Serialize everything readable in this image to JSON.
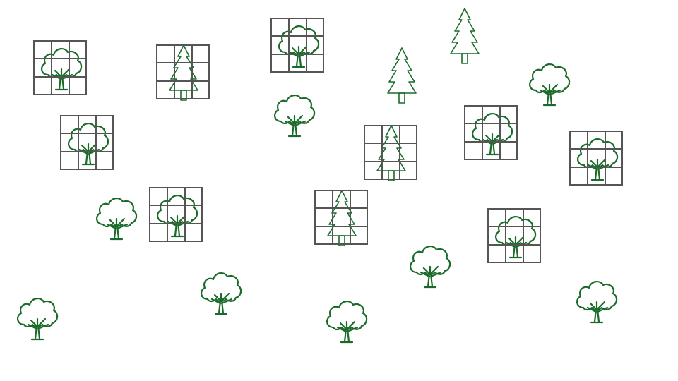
{
  "palette": {
    "background": "#ffffff",
    "tree_stroke": "#1a6b2a",
    "grid_stroke": "#555555"
  },
  "sprites": [
    {
      "id": "s1",
      "kind": "deciduous-tree",
      "grid": true
    },
    {
      "id": "s2",
      "kind": "pine-tree",
      "grid": true
    },
    {
      "id": "s3",
      "kind": "deciduous-tree",
      "grid": true
    },
    {
      "id": "s4",
      "kind": "pine-tree",
      "grid": false
    },
    {
      "id": "s5",
      "kind": "pine-tree",
      "grid": false
    },
    {
      "id": "s6",
      "kind": "deciduous-tree",
      "grid": false
    },
    {
      "id": "s7",
      "kind": "deciduous-tree",
      "grid": true
    },
    {
      "id": "s8",
      "kind": "deciduous-tree",
      "grid": false
    },
    {
      "id": "s9",
      "kind": "pine-tree",
      "grid": true
    },
    {
      "id": "s10",
      "kind": "deciduous-tree",
      "grid": true
    },
    {
      "id": "s11",
      "kind": "deciduous-tree",
      "grid": true
    },
    {
      "id": "s12",
      "kind": "deciduous-tree",
      "grid": false
    },
    {
      "id": "s13",
      "kind": "deciduous-tree",
      "grid": true
    },
    {
      "id": "s14",
      "kind": "pine-tree",
      "grid": true
    },
    {
      "id": "s15",
      "kind": "deciduous-tree",
      "grid": true
    },
    {
      "id": "s16",
      "kind": "deciduous-tree",
      "grid": false
    },
    {
      "id": "s17",
      "kind": "deciduous-tree",
      "grid": false
    },
    {
      "id": "s18",
      "kind": "deciduous-tree",
      "grid": false
    },
    {
      "id": "s19",
      "kind": "deciduous-tree",
      "grid": false
    },
    {
      "id": "s20",
      "kind": "deciduous-tree",
      "grid": false
    }
  ]
}
